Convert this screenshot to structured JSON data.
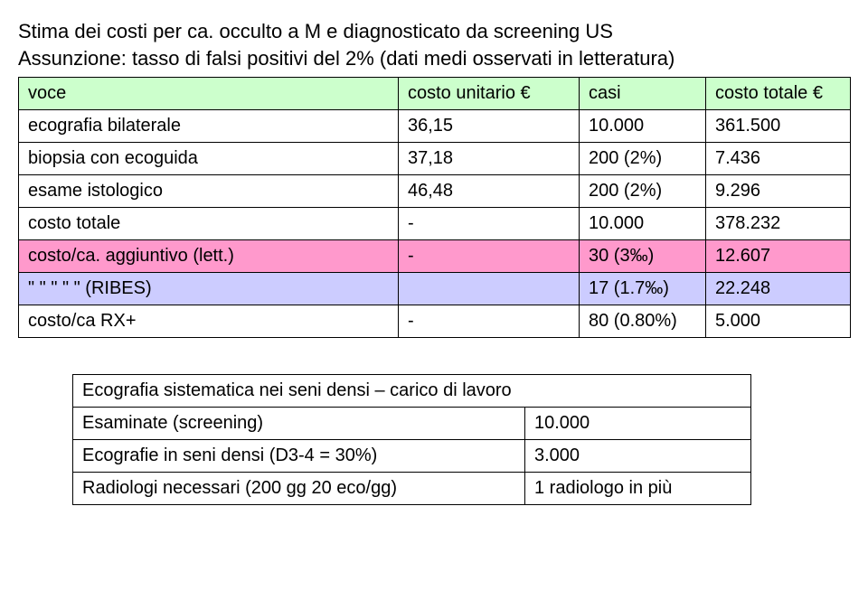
{
  "title_line1": "Stima dei costi per ca. occulto a M e diagnosticato da screening US",
  "title_line2": "Assunzione: tasso di falsi positivi del 2% (dati medi osservati in letteratura)",
  "table1": {
    "header": {
      "c0": "voce",
      "c1": "costo unitario €",
      "c2": "casi",
      "c3": "costo totale €"
    },
    "rows": [
      {
        "c0": "ecografia bilaterale",
        "c1": "36,15",
        "c2": "10.000",
        "c3": "361.500"
      },
      {
        "c0": "biopsia con ecoguida",
        "c1": "37,18",
        "c2": "200 (2%)",
        "c3": "7.436"
      },
      {
        "c0": "esame istologico",
        "c1": "46,48",
        "c2": "200 (2%)",
        "c3": "9.296"
      },
      {
        "c0": "costo totale",
        "c1": "-",
        "c2": "10.000",
        "c3": "378.232"
      },
      {
        "c0": "costo/ca. aggiuntivo (lett.)",
        "c1": "-",
        "c2": "30 (3‰)",
        "c3": "12.607"
      },
      {
        "c0": "\"    \"    \"    \"    \"    (RIBES)",
        "c1": "",
        "c2": "17 (1.7‰)",
        "c3": "22.248"
      },
      {
        "c0": "costo/ca RX+",
        "c1": "-",
        "c2": "80 (0.80%)",
        "c3": "5.000"
      }
    ],
    "row_colors": [
      "",
      "",
      "",
      "",
      "pink",
      "lilac",
      ""
    ],
    "column_widths": [
      "420px",
      "200px",
      "140px",
      "160px"
    ]
  },
  "table2": {
    "title": "Ecografia sistematica nei seni densi – carico di lavoro",
    "rows": [
      {
        "c0": "Esaminate (screening)",
        "c1": "10.000"
      },
      {
        "c0": "Ecografie in seni densi (D3-4 = 30%)",
        "c1": "3.000"
      },
      {
        "c0": "Radiologi necessari (200 gg 20 eco/gg)",
        "c1": "1 radiologo in più"
      }
    ],
    "column_widths": [
      "500px",
      "250px"
    ]
  },
  "colors": {
    "header_bg": "#ccffcc",
    "pink_bg": "#ff99cc",
    "lilac_bg": "#ccccff",
    "border": "#000000",
    "text": "#000000",
    "background": "#ffffff"
  },
  "typography": {
    "title_fontsize_pt": 16,
    "cell_fontsize_pt": 15,
    "font_family": "Arial"
  }
}
